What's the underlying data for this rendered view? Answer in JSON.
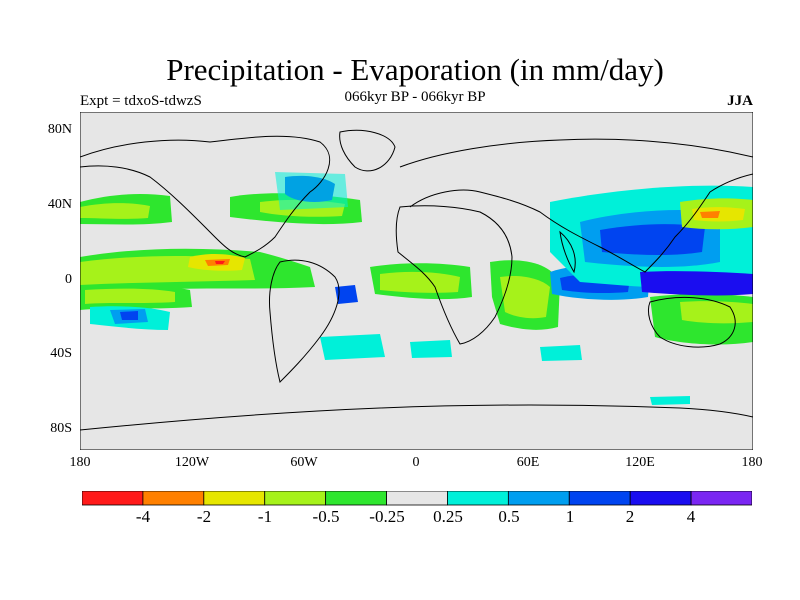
{
  "title": "Precipitation - Evaporation (in mm/day)",
  "subtitle": "066kyr BP - 066kyr BP",
  "experiment": "Expt = tdxoS-tdwzS",
  "season": "JJA",
  "map": {
    "lat_ticks": [
      "80N",
      "40N",
      "0",
      "40S",
      "80S"
    ],
    "lon_ticks": [
      "180",
      "120W",
      "60W",
      "0",
      "60E",
      "120E",
      "180"
    ],
    "background_color": "#e6e6e6"
  },
  "colorbar": {
    "colors": [
      "#ff1a1a",
      "#ff8000",
      "#e6e600",
      "#a6f21a",
      "#2ee62e",
      "#e6e6e6",
      "#00f0d9",
      "#009ef0",
      "#0044f0",
      "#1a0df0",
      "#7a26f2"
    ],
    "labels": [
      "-4",
      "-2",
      "-1",
      "-0.5",
      "-0.25",
      "0.25",
      "0.5",
      "1",
      "2",
      "4"
    ]
  }
}
